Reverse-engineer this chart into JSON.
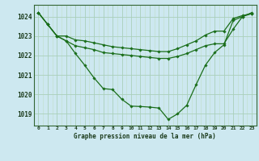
{
  "title": "Graphe pression niveau de la mer (hPa)",
  "bg_color": "#cde8f0",
  "grid_color_major": "#aacfba",
  "grid_color_minor": "#c0dfc8",
  "line_color": "#1a6e1a",
  "ylim": [
    1018.4,
    1024.6
  ],
  "yticks": [
    1019,
    1020,
    1021,
    1022,
    1023,
    1024
  ],
  "s1": [
    1024.2,
    1023.6,
    1023.0,
    1023.0,
    1022.8,
    1022.75,
    1022.65,
    1022.55,
    1022.45,
    1022.4,
    1022.35,
    1022.3,
    1022.25,
    1022.2,
    1022.2,
    1022.35,
    1022.55,
    1022.75,
    1023.05,
    1023.25,
    1023.25,
    1023.9,
    1024.05,
    1024.15
  ],
  "s2": [
    1024.2,
    1023.6,
    1023.0,
    1022.75,
    1022.5,
    1022.4,
    1022.3,
    1022.15,
    1022.1,
    1022.05,
    1022.0,
    1021.95,
    1021.9,
    1021.85,
    1021.85,
    1021.95,
    1022.1,
    1022.3,
    1022.5,
    1022.6,
    1022.6,
    1023.35,
    1024.0,
    1024.15
  ],
  "s3": [
    1024.2,
    1023.6,
    1023.0,
    1022.75,
    1022.1,
    1021.5,
    1020.85,
    1020.3,
    1020.25,
    1019.75,
    1019.4,
    1019.38,
    1019.35,
    1019.3,
    1018.72,
    1019.0,
    1019.45,
    1020.5,
    1021.5,
    1022.15,
    1022.55,
    1023.8,
    1024.0,
    1024.2
  ]
}
